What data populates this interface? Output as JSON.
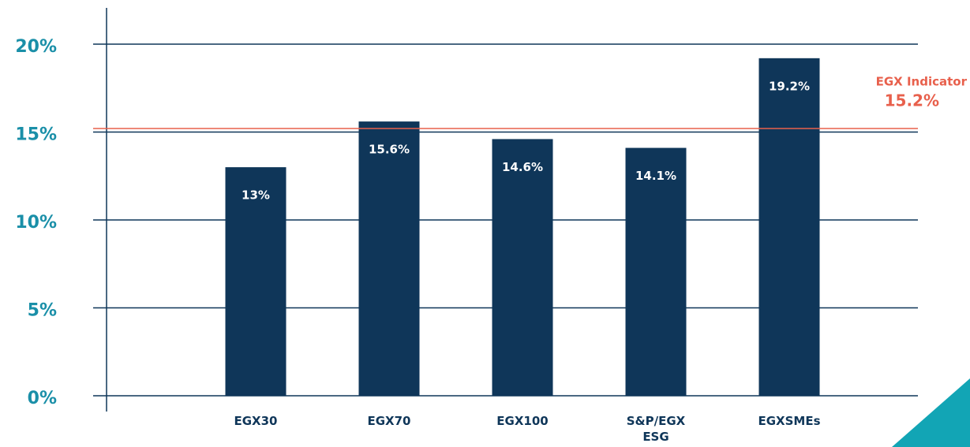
{
  "chart_data": {
    "type": "bar",
    "categories": [
      "EGX30",
      "EGX70",
      "EGX100",
      "S&P/EGX ESG",
      "EGXSMEs"
    ],
    "values": [
      13,
      15.6,
      14.6,
      14.1,
      19.2
    ],
    "value_labels": [
      "13%",
      "15.6%",
      "14.6%",
      "14.1%",
      "19.2%"
    ],
    "color": "#0f3659",
    "ylim": [
      0,
      20
    ],
    "yticks": [
      {
        "value": 0,
        "label": "0%"
      },
      {
        "value": 5,
        "label": "5%"
      },
      {
        "value": 10,
        "label": "10%"
      },
      {
        "value": 15,
        "label": "15%"
      },
      {
        "value": 20,
        "label": "20%"
      }
    ],
    "grid": true,
    "reference_line": {
      "label": "EGX Indicator",
      "value": 15.2,
      "value_label": "15.2%",
      "color": "#e8604c"
    }
  }
}
